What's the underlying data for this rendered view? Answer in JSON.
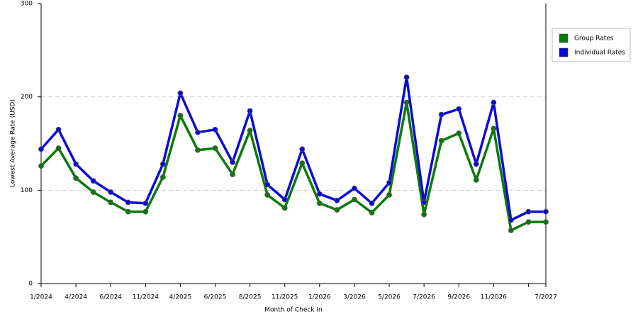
{
  "chart_data": {
    "type": "line",
    "x_label": "Month of Check In",
    "y_label": "Lowest Average Rate (USD)",
    "categories": [
      "1/2024",
      null,
      "4/2024",
      null,
      "6/2024",
      null,
      "11/2024",
      null,
      "4/2025",
      null,
      "6/2025",
      null,
      "8/2025",
      null,
      "11/2025",
      null,
      "1/2026",
      null,
      "3/2026",
      null,
      "5/2026",
      null,
      "7/2026",
      null,
      "9/2026",
      null,
      "11/2026",
      null,
      null,
      "7/2027"
    ],
    "series": [
      {
        "name": "Group Rates",
        "color": "#0a7a0a",
        "values": [
          126,
          145,
          113,
          98,
          87,
          77,
          77,
          114,
          180,
          143,
          145,
          117,
          164,
          95,
          81,
          129,
          86,
          79,
          90,
          76,
          95,
          194,
          74,
          153,
          161,
          111,
          166,
          57,
          66,
          66
        ]
      },
      {
        "name": "Individual Rates",
        "color": "#0a0ad8",
        "values": [
          144,
          165,
          128,
          110,
          98,
          87,
          86,
          128,
          204,
          162,
          165,
          130,
          185,
          106,
          90,
          144,
          96,
          89,
          102,
          86,
          108,
          221,
          87,
          181,
          187,
          128,
          194,
          68,
          77,
          77
        ]
      }
    ],
    "ylim": [
      0,
      300
    ],
    "yticks": [
      0,
      100,
      200,
      300
    ],
    "grid": true,
    "legend": "right"
  }
}
